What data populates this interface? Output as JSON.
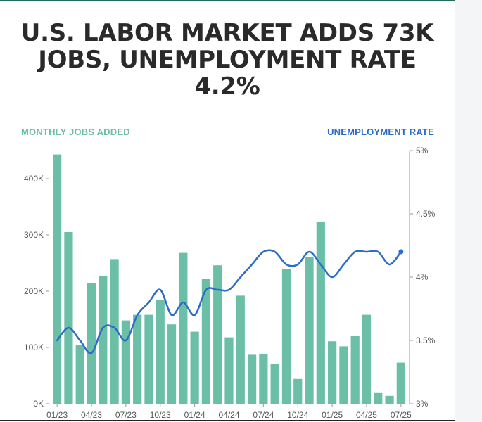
{
  "title": "U.S. LABOR MARKET ADDS 73K JOBS, UNEMPLOYMENT RATE 4.2%",
  "left_axis_title": "MONTHLY JOBS ADDED",
  "right_axis_title": "UNEMPLOYMENT RATE",
  "colors": {
    "bars": "#6bbfa6",
    "line": "#2a6dc9",
    "title": "#2a2a2a"
  },
  "chart_data": {
    "type": "bar",
    "categories": [
      "01/23",
      "02/23",
      "03/23",
      "04/23",
      "05/23",
      "06/23",
      "07/23",
      "08/23",
      "09/23",
      "10/23",
      "11/23",
      "12/23",
      "01/24",
      "02/24",
      "03/24",
      "04/24",
      "05/24",
      "06/24",
      "07/24",
      "08/24",
      "09/24",
      "10/24",
      "11/24",
      "12/24",
      "01/25",
      "02/25",
      "03/25",
      "04/25",
      "05/25",
      "06/25",
      "07/25"
    ],
    "x_tick_labels": [
      "01/23",
      "04/23",
      "07/23",
      "10/23",
      "01/24",
      "04/24",
      "07/24",
      "10/24",
      "01/25",
      "04/25",
      "07/25"
    ],
    "series": [
      {
        "axis": "left",
        "type": "bar",
        "values": [
          443,
          305,
          104,
          215,
          227,
          257,
          148,
          158,
          158,
          185,
          141,
          268,
          128,
          222,
          246,
          118,
          192,
          87,
          88,
          71,
          240,
          44,
          261,
          323,
          111,
          102,
          120,
          158,
          19,
          14,
          73
        ]
      },
      {
        "axis": "right",
        "type": "line",
        "values": [
          3.5,
          3.6,
          3.5,
          3.4,
          3.6,
          3.6,
          3.5,
          3.7,
          3.8,
          3.9,
          3.7,
          3.8,
          3.7,
          3.9,
          3.9,
          3.9,
          4.0,
          4.1,
          4.2,
          4.2,
          4.1,
          4.1,
          4.2,
          4.1,
          4.0,
          4.1,
          4.2,
          4.2,
          4.2,
          4.1,
          4.2
        ]
      }
    ],
    "left_axis": {
      "ylim": [
        0,
        450
      ],
      "ticks": [
        "0K",
        "100K",
        "200K",
        "300K",
        "400K"
      ]
    },
    "right_axis": {
      "ylim": [
        3,
        5
      ],
      "ticks": [
        "3%",
        "3.5%",
        "4%",
        "4.5%",
        "5%"
      ]
    },
    "grid": false
  }
}
